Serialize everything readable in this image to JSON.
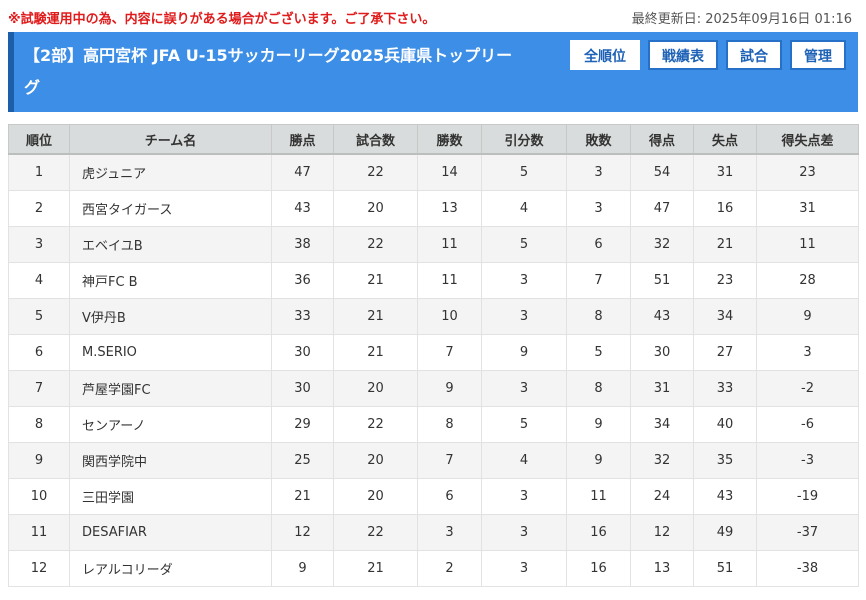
{
  "notice": "※試験運用中の為、内容に誤りがある場合がございます。ご了承下さい。",
  "updated": "最終更新日: 2025年09月16日 01:16",
  "header": {
    "title": "【2部】高円宮杯 JFA U-15サッカーリーグ2025兵庫県トップリーグ"
  },
  "nav": [
    {
      "label": "全順位",
      "active": true
    },
    {
      "label": "戦績表",
      "active": false
    },
    {
      "label": "試合",
      "active": false
    },
    {
      "label": "管理",
      "active": false
    }
  ],
  "table": {
    "headers": [
      "順位",
      "チーム名",
      "勝点",
      "試合数",
      "勝数",
      "引分数",
      "敗数",
      "得点",
      "失点",
      "得失点差"
    ],
    "rows": [
      [
        "1",
        "虎ジュニア",
        "47",
        "22",
        "14",
        "5",
        "3",
        "54",
        "31",
        "23"
      ],
      [
        "2",
        "西宮タイガース",
        "43",
        "20",
        "13",
        "4",
        "3",
        "47",
        "16",
        "31"
      ],
      [
        "3",
        "エベイユB",
        "38",
        "22",
        "11",
        "5",
        "6",
        "32",
        "21",
        "11"
      ],
      [
        "4",
        "神戸FC B",
        "36",
        "21",
        "11",
        "3",
        "7",
        "51",
        "23",
        "28"
      ],
      [
        "5",
        "V伊丹B",
        "33",
        "21",
        "10",
        "3",
        "8",
        "43",
        "34",
        "9"
      ],
      [
        "6",
        "M.SERIO",
        "30",
        "21",
        "7",
        "9",
        "5",
        "30",
        "27",
        "3"
      ],
      [
        "7",
        "芦屋学園FC",
        "30",
        "20",
        "9",
        "3",
        "8",
        "31",
        "33",
        "-2"
      ],
      [
        "8",
        "センアーノ",
        "29",
        "22",
        "8",
        "5",
        "9",
        "34",
        "40",
        "-6"
      ],
      [
        "9",
        "関西学院中",
        "25",
        "20",
        "7",
        "4",
        "9",
        "32",
        "35",
        "-3"
      ],
      [
        "10",
        "三田学園",
        "21",
        "20",
        "6",
        "3",
        "11",
        "24",
        "43",
        "-19"
      ],
      [
        "11",
        "DESAFIAR",
        "12",
        "22",
        "3",
        "3",
        "16",
        "12",
        "49",
        "-37"
      ],
      [
        "12",
        "レアルコリーダ",
        "9",
        "21",
        "2",
        "3",
        "16",
        "13",
        "51",
        "-38"
      ]
    ]
  }
}
